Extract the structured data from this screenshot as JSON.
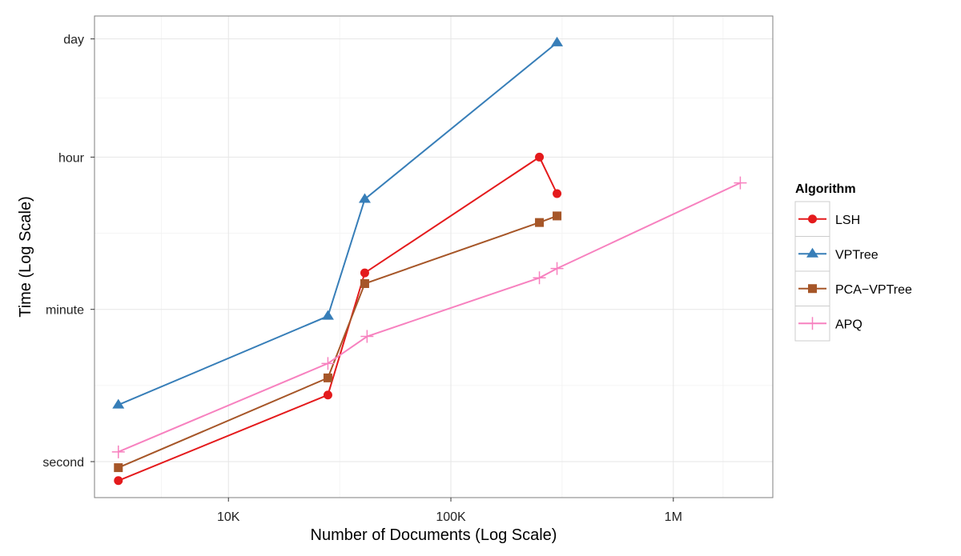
{
  "chart_data": {
    "type": "line",
    "title": "",
    "xlabel": "Number of Documents (Log Scale)",
    "ylabel": "Time (Log Scale)",
    "x_scale": "log",
    "y_scale": "log",
    "x_unit": "documents",
    "y_unit": "seconds",
    "xlim": [
      2500,
      2800000
    ],
    "ylim": [
      0.38,
      160000
    ],
    "x_ticks": [
      {
        "value": 10000,
        "label": "10K"
      },
      {
        "value": 100000,
        "label": "100K"
      },
      {
        "value": 1000000,
        "label": "1M"
      }
    ],
    "y_ticks": [
      {
        "value": 1,
        "label": "second"
      },
      {
        "value": 60,
        "label": "minute"
      },
      {
        "value": 3600,
        "label": "hour"
      },
      {
        "value": 86400,
        "label": "day"
      }
    ],
    "grid": true,
    "legend": {
      "title": "Algorithm",
      "position": "right"
    },
    "series": [
      {
        "name": "LSH",
        "color": "#e41a1c",
        "marker": "circle",
        "points": [
          {
            "x": 3200,
            "y": 0.6
          },
          {
            "x": 28000,
            "y": 6
          },
          {
            "x": 41000,
            "y": 160
          },
          {
            "x": 250000,
            "y": 3600
          },
          {
            "x": 300000,
            "y": 1350
          }
        ]
      },
      {
        "name": "VPTree",
        "color": "#377eb8",
        "marker": "triangle",
        "points": [
          {
            "x": 3200,
            "y": 4.6
          },
          {
            "x": 28000,
            "y": 50
          },
          {
            "x": 41000,
            "y": 1160
          },
          {
            "x": 300000,
            "y": 78000
          }
        ]
      },
      {
        "name": "PCA−VPTree",
        "color": "#a65628",
        "marker": "square",
        "points": [
          {
            "x": 3200,
            "y": 0.85
          },
          {
            "x": 28000,
            "y": 9.5
          },
          {
            "x": 41000,
            "y": 120
          },
          {
            "x": 250000,
            "y": 620
          },
          {
            "x": 300000,
            "y": 740
          }
        ]
      },
      {
        "name": "APQ",
        "color": "#f781bf",
        "marker": "plus",
        "points": [
          {
            "x": 3200,
            "y": 1.3
          },
          {
            "x": 28000,
            "y": 14
          },
          {
            "x": 42000,
            "y": 29
          },
          {
            "x": 250000,
            "y": 140
          },
          {
            "x": 300000,
            "y": 180
          },
          {
            "x": 2000000,
            "y": 1800
          }
        ]
      }
    ]
  }
}
